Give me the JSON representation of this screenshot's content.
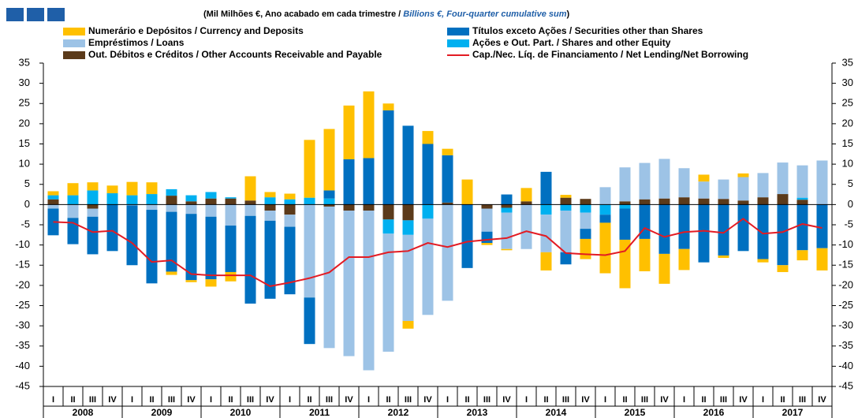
{
  "chart_data": {
    "type": "bar",
    "subtitle_pt": "(Mil Milhões €, Ano acabado em cada trimestre  /",
    "subtitle_en": "Billions  €, Four-quarter cumulative sum",
    "subtitle_end": ")",
    "categories": [
      "I",
      "II",
      "III",
      "IV",
      "I",
      "II",
      "III",
      "IV",
      "I",
      "II",
      "III",
      "IV",
      "I",
      "II",
      "III",
      "IV",
      "I",
      "II",
      "III",
      "IV",
      "I",
      "II",
      "III",
      "IV",
      "I",
      "II",
      "III",
      "IV",
      "I",
      "II",
      "III",
      "IV",
      "I",
      "II",
      "III",
      "IV",
      "I",
      "II",
      "III",
      "IV"
    ],
    "years": [
      "2008",
      "2009",
      "2010",
      "2011",
      "2012",
      "2013",
      "2014",
      "2015",
      "2016",
      "2017"
    ],
    "ylim": [
      -45,
      35
    ],
    "yticks": [
      -45,
      -40,
      -35,
      -30,
      -25,
      -20,
      -15,
      -10,
      -5,
      0,
      5,
      10,
      15,
      20,
      25,
      30,
      35
    ],
    "series": [
      {
        "name": "Numerário e Depósitos / Currency and Deposits",
        "color": "#ffc000",
        "values": [
          1.0,
          3.0,
          2.0,
          1.9,
          3.3,
          2.9,
          -0.8,
          -0.5,
          -1.8,
          -2.3,
          6.0,
          1.3,
          1.4,
          14.3,
          15.2,
          13.3,
          16.5,
          1.7,
          -1.9,
          3.2,
          1.6,
          6.2,
          -0.5,
          -0.3,
          3.3,
          -4.5,
          0.7,
          -5,
          -12.5,
          -12,
          -8,
          -7.4,
          -5.2,
          1.7,
          -0.6,
          0.9,
          -0.8,
          -1.7,
          -2.5,
          -5.5
        ]
      },
      {
        "name": "Títulos exceto Ações / Securities other than Shares",
        "color": "#0070c0",
        "values": [
          -6.6,
          -6.5,
          -9.3,
          -11.5,
          -14.8,
          -18.2,
          -14.8,
          -16.4,
          -15.5,
          -11.5,
          -21.7,
          -19.3,
          -16.7,
          -11.5,
          2.0,
          11.2,
          11.5,
          23.3,
          19.5,
          15,
          11.7,
          -15.7,
          -2.8,
          2.5,
          0,
          8.1,
          -3,
          -2.5,
          -2.0,
          -7.7,
          -8.5,
          -12.2,
          -11,
          -14.3,
          -12.6,
          -11.5,
          -13.5,
          -15,
          -11.3,
          -10.8
        ]
      },
      {
        "name": "Empréstimos / Loans",
        "color": "#9dc3e6",
        "values": [
          -1.0,
          -3.3,
          -2,
          0,
          -0.2,
          -1.3,
          -1.8,
          -2.3,
          -3.0,
          -5.2,
          -2.8,
          -2.5,
          -3.0,
          -23,
          -35,
          -36,
          -39.5,
          -29.2,
          -21.3,
          -23.8,
          -23.8,
          0,
          -5.7,
          -9,
          -11,
          -9.3,
          -10.3,
          -4,
          4.3,
          8.4,
          9,
          9.8,
          7.2,
          4.2,
          4.8,
          5.8,
          6,
          7.8,
          8,
          10.9
        ]
      },
      {
        "name": "Ações e Out. Part. / Shares and other Equity",
        "color": "#00b0f0",
        "values": [
          1.0,
          2.3,
          3.5,
          2.8,
          2.3,
          2.6,
          1.6,
          1.5,
          1.6,
          0.3,
          0,
          1.8,
          1.3,
          1.7,
          1.5,
          0,
          0,
          -3.5,
          -3.6,
          -3.5,
          0,
          0,
          0,
          -1.2,
          0,
          -2.5,
          -1.5,
          -2,
          -2.5,
          -1,
          0,
          0,
          0,
          0,
          0,
          0,
          0,
          0,
          0.5,
          0
        ]
      },
      {
        "name": "Out. Débitos e Créditos / Other Accounts Receivable and Payable",
        "color": "#5b3a1a",
        "values": [
          1.3,
          0,
          -1,
          0,
          0,
          0,
          2.2,
          0.8,
          1.5,
          1.5,
          1.0,
          -1.5,
          -2.5,
          0,
          -0.5,
          -1.5,
          -1.5,
          -3.7,
          -3.9,
          0,
          0.5,
          0,
          -1,
          -0.8,
          0.8,
          0,
          1.7,
          1.4,
          0,
          0.8,
          1.3,
          1.5,
          1.8,
          1.5,
          1.4,
          1.0,
          1.8,
          2.6,
          1.2,
          0
        ]
      },
      {
        "name": "Cap./Nec. Líq. de Financiamento / Net Lending/Net Borrowing",
        "color": "#e31b23",
        "type": "line",
        "values": [
          -4.3,
          -4.5,
          -6.8,
          -6.5,
          -9.5,
          -14.2,
          -13.8,
          -17.2,
          -17.5,
          -17.5,
          -17.5,
          -20.2,
          -19.3,
          -18.2,
          -16.8,
          -13,
          -13,
          -11.8,
          -11.5,
          -9.5,
          -10.5,
          -9.2,
          -8.7,
          -8.3,
          -6.6,
          -7.8,
          -12,
          -12.3,
          -12.5,
          -11.5,
          -5.8,
          -8,
          -6.8,
          -6.5,
          -7,
          -3.5,
          -7.2,
          -6.8,
          -4.8,
          -5.8
        ]
      }
    ]
  }
}
